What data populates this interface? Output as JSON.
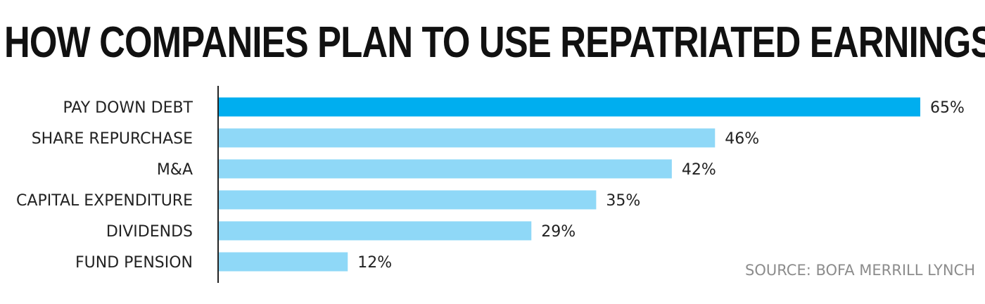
{
  "chart_data": {
    "type": "bar",
    "orientation": "horizontal",
    "title": "HOW COMPANIES PLAN TO USE REPATRIATED EARNINGS",
    "categories": [
      "PAY DOWN DEBT",
      "SHARE REPURCHASE",
      "M&A",
      "CAPITAL EXPENDITURE",
      "DIVIDENDS",
      "FUND PENSION"
    ],
    "values": [
      65,
      46,
      42,
      35,
      29,
      12
    ],
    "value_labels": [
      "65%",
      "46%",
      "42%",
      "35%",
      "29%",
      "12%"
    ],
    "unit": "%",
    "xlim": [
      0,
      65
    ],
    "grid": false,
    "legend": "none",
    "source": "SOURCE: BOFA MERRILL LYNCH",
    "colors": {
      "highlight": "#00aeef",
      "bar": "#8fd8f7",
      "axis": "#222222",
      "text": "#222222",
      "source": "#8c8c8c"
    },
    "highlight_index": 0
  }
}
